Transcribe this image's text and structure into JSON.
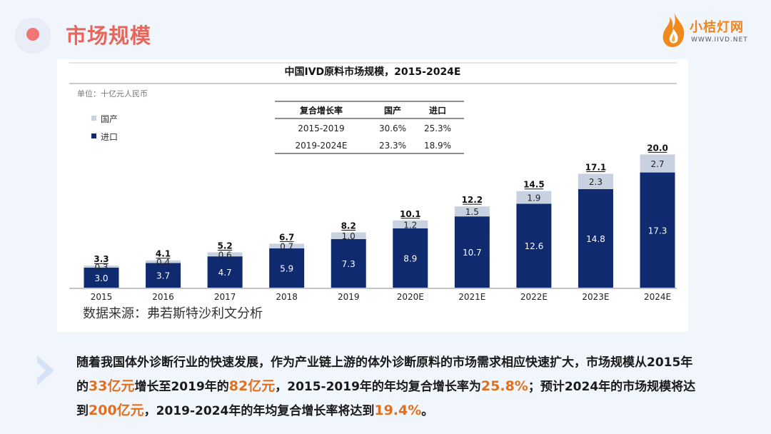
{
  "header": {
    "title": "市场规模"
  },
  "logo": {
    "name": "小桔灯网",
    "url": "WWW.IIVD.NET"
  },
  "chart_data": {
    "type": "bar",
    "stacked": true,
    "title": "中国IVD原料市场规模，2015-2024E",
    "unit_label": "单位：十亿元人民币",
    "categories": [
      "2015",
      "2016",
      "2017",
      "2018",
      "2019",
      "2020E",
      "2021E",
      "2022E",
      "2023E",
      "2024E"
    ],
    "series": [
      {
        "name": "进口",
        "color": "#0f2a6e",
        "values": [
          3.0,
          3.7,
          4.7,
          5.9,
          7.3,
          8.9,
          10.7,
          12.6,
          14.8,
          17.3
        ]
      },
      {
        "name": "国产",
        "color": "#c8d1df",
        "values": [
          0.3,
          0.4,
          0.6,
          0.7,
          1.0,
          1.2,
          1.5,
          1.9,
          2.3,
          2.7
        ]
      }
    ],
    "legend_order": [
      "国产",
      "进口"
    ],
    "totals": [
      "3.3",
      "4.1",
      "5.2",
      "6.7",
      "8.2",
      "10.1",
      "12.2",
      "14.5",
      "17.1",
      "20.0"
    ],
    "ylim": [
      0,
      21
    ],
    "cagr_table": {
      "headers": [
        "复合增长率",
        "国产",
        "进口"
      ],
      "rows": [
        [
          "2015-2019",
          "30.6%",
          "25.3%"
        ],
        [
          "2019-2024E",
          "23.3%",
          "18.9%"
        ]
      ]
    },
    "source": "数据来源：弗若斯特沙利文分析"
  },
  "summary": {
    "segments": [
      {
        "text": "随着我国体外诊断行业的快速发展，作为产业链上游的体外诊断原料的市场需求相应快速扩大，市场规模从2015年的",
        "hl": false
      },
      {
        "text": "33亿元",
        "hl": true
      },
      {
        "text": "增长至2019年的",
        "hl": false
      },
      {
        "text": "82亿元",
        "hl": true
      },
      {
        "text": "，2015-2019年的年均复合增长率为",
        "hl": false
      },
      {
        "text": "25.8%",
        "hl": true
      },
      {
        "text": "；预计2024年的市场规模将达到",
        "hl": false
      },
      {
        "text": "200亿元",
        "hl": true
      },
      {
        "text": "，2019-2024年的年均复合增长率将达到",
        "hl": false
      },
      {
        "text": "19.4%",
        "hl": true
      },
      {
        "text": "。",
        "hl": false
      }
    ]
  },
  "colors": {
    "accent": "#e8655a",
    "highlight": "#e07020",
    "import_bar": "#0f2a6e",
    "domestic_bar": "#c8d1df"
  }
}
